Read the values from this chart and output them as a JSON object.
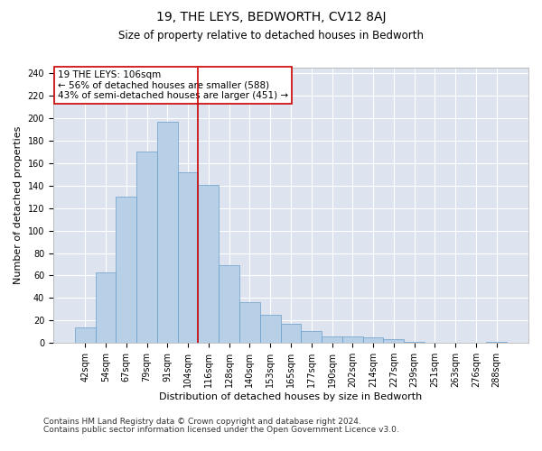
{
  "title": "19, THE LEYS, BEDWORTH, CV12 8AJ",
  "subtitle": "Size of property relative to detached houses in Bedworth",
  "xlabel": "Distribution of detached houses by size in Bedworth",
  "ylabel": "Number of detached properties",
  "categories": [
    "42sqm",
    "54sqm",
    "67sqm",
    "79sqm",
    "91sqm",
    "104sqm",
    "116sqm",
    "128sqm",
    "140sqm",
    "153sqm",
    "165sqm",
    "177sqm",
    "190sqm",
    "202sqm",
    "214sqm",
    "227sqm",
    "239sqm",
    "251sqm",
    "263sqm",
    "276sqm",
    "288sqm"
  ],
  "bar_heights": [
    14,
    63,
    130,
    170,
    197,
    152,
    141,
    69,
    36,
    25,
    17,
    11,
    6,
    6,
    5,
    3,
    1,
    0,
    0,
    0,
    1
  ],
  "bar_color": "#b8cfe8",
  "bar_edge_color": "#6b9dc8",
  "background_color": "#dde4f0",
  "grid_color": "#ffffff",
  "annotation_box_color": "#ffffff",
  "annotation_box_edge": "#cc0000",
  "vline_color": "#cc0000",
  "annotation_text_line1": "19 THE LEYS: 106sqm",
  "annotation_text_line2": "← 56% of detached houses are smaller (588)",
  "annotation_text_line3": "43% of semi-detached houses are larger (451) →",
  "footer_line1": "Contains HM Land Registry data © Crown copyright and database right 2024.",
  "footer_line2": "Contains public sector information licensed under the Open Government Licence v3.0.",
  "ylim": [
    0,
    245
  ],
  "yticks": [
    0,
    20,
    40,
    60,
    80,
    100,
    120,
    140,
    160,
    180,
    200,
    220,
    240
  ],
  "title_fontsize": 10,
  "subtitle_fontsize": 8.5,
  "xlabel_fontsize": 8,
  "ylabel_fontsize": 8,
  "tick_fontsize": 7,
  "annotation_fontsize": 7.5,
  "footer_fontsize": 6.5
}
